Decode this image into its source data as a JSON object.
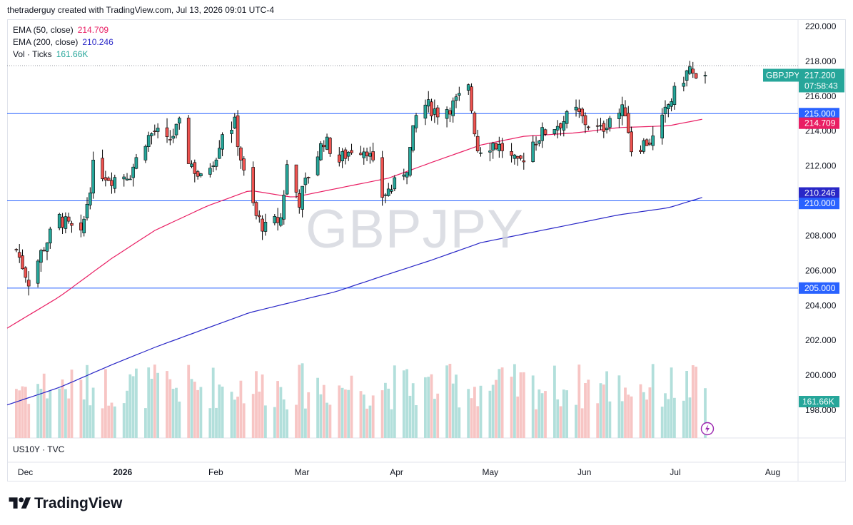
{
  "header": {
    "text": "thetraderguy created with TradingView.com, Jul 13, 2026 09:01 UTC-4"
  },
  "legend": {
    "ema50": {
      "label": "EMA (50, close)",
      "value": "214.709"
    },
    "ema200": {
      "label": "EMA (200, close)",
      "value": "210.246"
    },
    "vol": {
      "label": "Vol · Ticks",
      "value": "161.66K"
    }
  },
  "watermark": "GBPJPY",
  "sub_label": "US10Y · TVC",
  "brand": {
    "name": "TradingView"
  },
  "colors": {
    "up": "#26a69a",
    "down": "#ef5350",
    "ema50": "#e91e63",
    "ema200": "#2927c7",
    "hline": "#2962ff",
    "vol_up": "#b2dfdb",
    "vol_down": "#f7c5c4",
    "symbol_tag": "#26a69a"
  },
  "chart_data": {
    "type": "candlestick",
    "symbol": "GBPJPY",
    "y_ticks": [
      "220.000",
      "218.000",
      "216.000",
      "214.000",
      "212.000",
      "210.000",
      "208.000",
      "206.000",
      "204.000",
      "202.000",
      "200.000",
      "198.000"
    ],
    "x_ticks": [
      "Dec",
      "2026",
      "Feb",
      "Mar",
      "Apr",
      "May",
      "Jun",
      "Jul",
      "Aug"
    ],
    "x_range": [
      "2025-11-28",
      "2026-08-08"
    ],
    "price_tags": [
      {
        "label": "GBPJPY",
        "value": "217.200",
        "timer": "07:58:43",
        "color": "#26a69a"
      },
      {
        "value": "215.000",
        "color": "#2962ff"
      },
      {
        "value": "214.709",
        "color": "#e91e63"
      },
      {
        "value": "210.246",
        "color": "#2927c7"
      },
      {
        "value": "210.000",
        "color": "#2962ff"
      },
      {
        "value": "205.000",
        "color": "#2962ff"
      }
    ],
    "horizontal_lines": [
      215.0,
      210.0,
      205.0
    ],
    "last_close": 217.2,
    "volume_last": "161.66K",
    "ohlc_anchors": [
      [
        "2025-12-01",
        207.2
      ],
      [
        "2025-12-05",
        205.4
      ],
      [
        "2025-12-10",
        207.4
      ],
      [
        "2025-12-15",
        209.0
      ],
      [
        "2025-12-22",
        207.9
      ],
      [
        "2025-12-26",
        211.9
      ],
      [
        "2026-01-01",
        211.3
      ],
      [
        "2026-01-07",
        211.6
      ],
      [
        "2026-01-12",
        213.5
      ],
      [
        "2026-01-15",
        214.0
      ],
      [
        "2026-01-19",
        213.3
      ],
      [
        "2026-01-23",
        214.3
      ],
      [
        "2026-01-26",
        212.4
      ],
      [
        "2026-01-30",
        211.2
      ],
      [
        "2026-02-04",
        212.7
      ],
      [
        "2026-02-06",
        214.0
      ],
      [
        "2026-02-10",
        214.4
      ],
      [
        "2026-02-13",
        211.5
      ],
      [
        "2026-02-17",
        209.1
      ],
      [
        "2026-02-20",
        208.4
      ],
      [
        "2026-02-25",
        209.0
      ],
      [
        "2026-02-27",
        212.0
      ],
      [
        "2026-03-03",
        210.0
      ],
      [
        "2026-03-06",
        211.5
      ],
      [
        "2026-03-11",
        213.5
      ],
      [
        "2026-03-16",
        212.3
      ],
      [
        "2026-03-20",
        213.0
      ],
      [
        "2026-03-25",
        213.0
      ],
      [
        "2026-03-30",
        210.3
      ],
      [
        "2026-04-03",
        210.9
      ],
      [
        "2026-04-07",
        212.0
      ],
      [
        "2026-04-10",
        214.8
      ],
      [
        "2026-04-13",
        215.5
      ],
      [
        "2026-04-17",
        215.1
      ],
      [
        "2026-04-22",
        215.5
      ],
      [
        "2026-04-27",
        216.4
      ],
      [
        "2026-04-30",
        213.0
      ],
      [
        "2026-05-05",
        213.3
      ],
      [
        "2026-05-08",
        213.0
      ],
      [
        "2026-05-13",
        212.0
      ],
      [
        "2026-05-18",
        213.4
      ],
      [
        "2026-05-22",
        214.0
      ],
      [
        "2026-05-27",
        214.5
      ],
      [
        "2026-06-01",
        215.1
      ],
      [
        "2026-06-04",
        214.5
      ],
      [
        "2026-06-09",
        214.0
      ],
      [
        "2026-06-12",
        214.8
      ],
      [
        "2026-06-17",
        215.2
      ],
      [
        "2026-06-19",
        213.0
      ],
      [
        "2026-06-23",
        213.3
      ],
      [
        "2026-06-27",
        213.6
      ],
      [
        "2026-07-01",
        215.5
      ],
      [
        "2026-07-05",
        216.8
      ],
      [
        "2026-07-08",
        217.6
      ],
      [
        "2026-07-10",
        216.7
      ],
      [
        "2026-07-13",
        217.2
      ]
    ],
    "ema50_anchors": [
      [
        "2025-11-28",
        202.7
      ],
      [
        "2025-12-15",
        204.5
      ],
      [
        "2026-01-01",
        206.7
      ],
      [
        "2026-01-15",
        208.3
      ],
      [
        "2026-02-01",
        209.7
      ],
      [
        "2026-02-15",
        210.6
      ],
      [
        "2026-03-01",
        210.2
      ],
      [
        "2026-03-15",
        210.7
      ],
      [
        "2026-04-01",
        211.3
      ],
      [
        "2026-04-15",
        212.2
      ],
      [
        "2026-05-01",
        213.2
      ],
      [
        "2026-05-15",
        213.7
      ],
      [
        "2026-06-01",
        213.9
      ],
      [
        "2026-06-15",
        214.2
      ],
      [
        "2026-07-01",
        214.3
      ],
      [
        "2026-07-13",
        214.709
      ]
    ],
    "ema200_anchors": [
      [
        "2025-11-28",
        198.3
      ],
      [
        "2025-12-15",
        199.3
      ],
      [
        "2026-01-01",
        200.6
      ],
      [
        "2026-01-15",
        201.6
      ],
      [
        "2026-02-01",
        202.7
      ],
      [
        "2026-02-15",
        203.6
      ],
      [
        "2026-03-01",
        204.2
      ],
      [
        "2026-03-15",
        204.8
      ],
      [
        "2026-04-01",
        205.8
      ],
      [
        "2026-04-15",
        206.6
      ],
      [
        "2026-05-01",
        207.6
      ],
      [
        "2026-05-15",
        208.1
      ],
      [
        "2026-06-01",
        208.7
      ],
      [
        "2026-06-15",
        209.2
      ],
      [
        "2026-07-01",
        209.6
      ],
      [
        "2026-07-13",
        210.246
      ]
    ]
  }
}
